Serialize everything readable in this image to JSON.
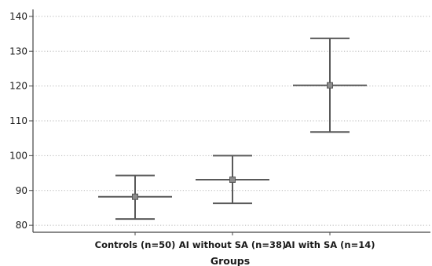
{
  "chart_data": {
    "type": "errorbar",
    "xlabel": "Groups",
    "ylabel": "",
    "ylim": [
      78,
      142
    ],
    "yticks": [
      80,
      90,
      100,
      110,
      120,
      130,
      140
    ],
    "grid": "horizontal-dotted",
    "categories": [
      "Controls (n=50)",
      "AI without SA (n=38)",
      "AI with SA (n=14)"
    ],
    "series": [
      {
        "mean": [
          88.2,
          93.1,
          120.2
        ],
        "lower": [
          81.8,
          86.3,
          106.8
        ],
        "upper": [
          94.3,
          100.0,
          133.7
        ]
      }
    ],
    "colors": {
      "marks": "#595959",
      "axis": "#444444",
      "grid": "#b5b5b5",
      "marker_fill": "#8c8c8c"
    }
  }
}
